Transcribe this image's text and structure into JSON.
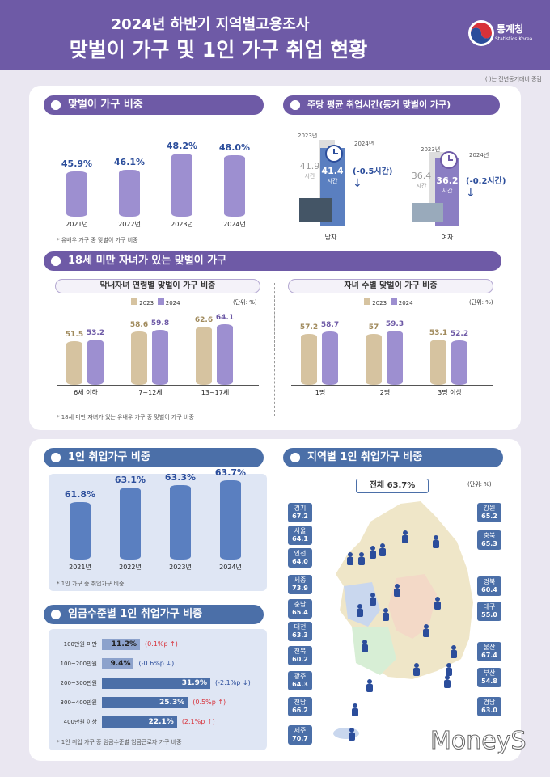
{
  "header": {
    "subtitle": "2024년 하반기 지역별고용조사",
    "title": "맞벌이 가구 및 1인 가구 취업 현황",
    "logo_name": "통계청",
    "logo_sub": "Statistics Korea",
    "note": "( )는 전년동기대비 증감"
  },
  "dual_ratio": {
    "title": "맞벌이 가구 비중",
    "note": "* 유배우 가구 중 맞벌이 가구 비중",
    "chart_data": {
      "type": "bar",
      "categories": [
        "2021년",
        "2022년",
        "2023년",
        "2024년"
      ],
      "values": [
        45.9,
        46.1,
        48.2,
        48.0
      ],
      "labels": [
        "45.9%",
        "46.1%",
        "48.2%",
        "48.0%"
      ],
      "ylim": [
        0,
        50
      ]
    }
  },
  "work_hours": {
    "title": "주당 평균 취업시간(동거 맞벌이 가구)",
    "year_prev": "2023년",
    "year_curr": "2024년",
    "male": {
      "label": "남자",
      "prev": "41.9",
      "curr": "41.4",
      "unit": "시간",
      "change": "(-0.5시간)"
    },
    "female": {
      "label": "여자",
      "prev": "36.4",
      "curr": "36.2",
      "unit": "시간",
      "change": "(-0.2시간)"
    }
  },
  "children": {
    "title": "18세 미만 자녀가 있는 맞벌이 가구",
    "left_title": "막내자녀 연령별 맞벌이 가구 비중",
    "right_title": "자녀 수별 맞벌이 가구 비중",
    "legend_2023": "2023",
    "legend_2024": "2024",
    "unit": "(단위: %)",
    "note": "* 18세 미만 자녀가 있는 유배우 가구 중 맞벌이 가구 비중",
    "chart_data": [
      {
        "type": "bar",
        "categories": [
          "6세 이하",
          "7~12세",
          "13~17세"
        ],
        "series": [
          {
            "name": "2023",
            "values": [
              51.5,
              58.6,
              62.6
            ]
          },
          {
            "name": "2024",
            "values": [
              53.2,
              59.8,
              64.1
            ]
          }
        ]
      },
      {
        "type": "bar",
        "categories": [
          "1명",
          "2명",
          "3명 이상"
        ],
        "series": [
          {
            "name": "2023",
            "values": [
              57.2,
              57.0,
              53.1
            ]
          },
          {
            "name": "2024",
            "values": [
              58.7,
              59.3,
              52.2
            ]
          }
        ]
      }
    ]
  },
  "single_ratio": {
    "title": "1인 취업가구 비중",
    "note": "* 1인 가구 중 취업가구 비중",
    "chart_data": {
      "type": "bar",
      "categories": [
        "2021년",
        "2022년",
        "2023년",
        "2024년"
      ],
      "values": [
        61.8,
        63.1,
        63.3,
        63.7
      ],
      "labels": [
        "61.8%",
        "63.1%",
        "63.3%",
        "63.7%"
      ],
      "ylim": [
        0,
        64
      ]
    }
  },
  "wage": {
    "title": "임금수준별 1인 취업가구 비중",
    "note": "* 1인 취업 가구 중 임금수준별 임금근로자 가구 비중",
    "chart_data": {
      "type": "bar",
      "categories": [
        "100만원 미만",
        "100~200만원",
        "200~300만원",
        "300~400만원",
        "400만원 이상"
      ],
      "values": [
        11.2,
        9.4,
        31.9,
        25.3,
        22.1
      ]
    },
    "rows": [
      {
        "label": "100만원 미만",
        "value": "11.2%",
        "change": "(0.1%p ↑)",
        "dir": "up"
      },
      {
        "label": "100~200만원",
        "value": "9.4%",
        "change": "(-0.6%p ↓)",
        "dir": "down"
      },
      {
        "label": "200~300만원",
        "value": "31.9%",
        "change": "(-2.1%p ↓)",
        "dir": "down"
      },
      {
        "label": "300~400만원",
        "value": "25.3%",
        "change": "(0.5%p ↑)",
        "dir": "up"
      },
      {
        "label": "400만원 이상",
        "value": "22.1%",
        "change": "(2.1%p ↑)",
        "dir": "up"
      }
    ]
  },
  "regional": {
    "title": "지역별 1인 취업가구 비중",
    "total": "전체 63.7%",
    "unit": "(단위: %)",
    "regions": [
      {
        "name": "경기",
        "value": "67.2"
      },
      {
        "name": "서울",
        "value": "64.1"
      },
      {
        "name": "인천",
        "value": "64.0"
      },
      {
        "name": "세종",
        "value": "73.9"
      },
      {
        "name": "충남",
        "value": "65.4"
      },
      {
        "name": "대전",
        "value": "63.3"
      },
      {
        "name": "전북",
        "value": "60.2"
      },
      {
        "name": "광주",
        "value": "64.3"
      },
      {
        "name": "전남",
        "value": "66.2"
      },
      {
        "name": "제주",
        "value": "70.7"
      },
      {
        "name": "강원",
        "value": "65.2"
      },
      {
        "name": "충북",
        "value": "65.3"
      },
      {
        "name": "경북",
        "value": "60.4"
      },
      {
        "name": "대구",
        "value": "55.0"
      },
      {
        "name": "울산",
        "value": "67.4"
      },
      {
        "name": "부산",
        "value": "54.8"
      },
      {
        "name": "경남",
        "value": "63.0"
      }
    ]
  },
  "watermark": "MoneyS",
  "colors": {
    "purple": "#6e5aa6",
    "blue": "#4b6fa8",
    "bar_purple": "#9d8fd0",
    "bar_tan": "#d6c3a0",
    "bar_blue": "#5a7fc0"
  }
}
